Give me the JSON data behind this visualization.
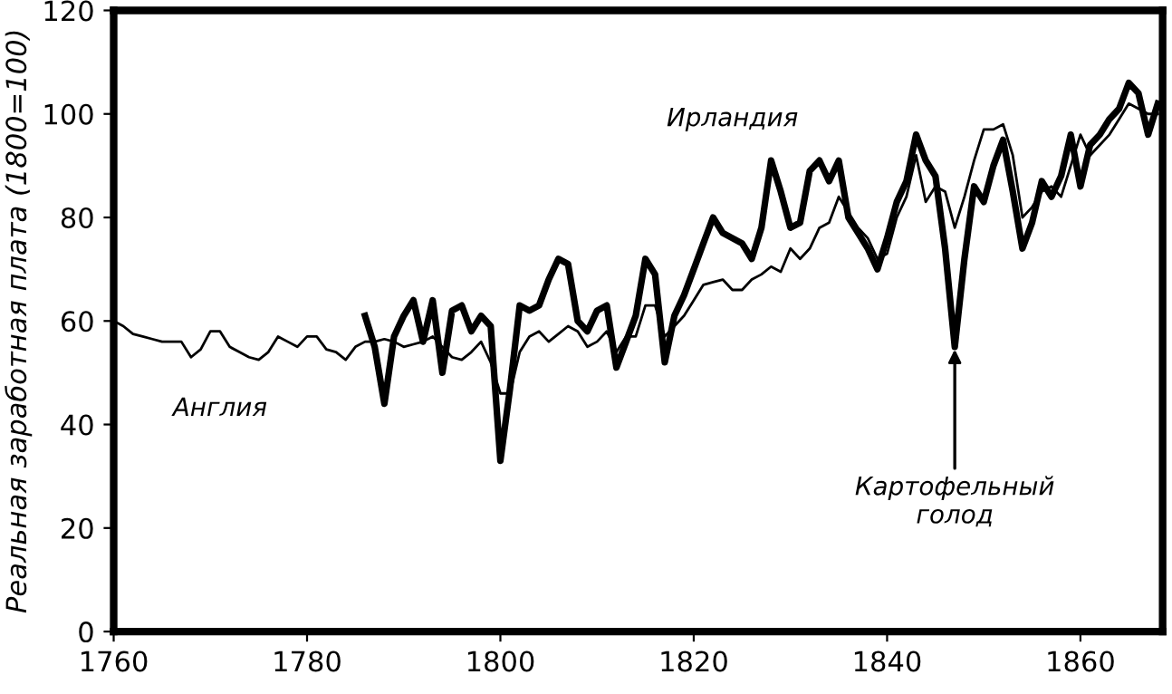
{
  "chart_data": {
    "type": "line",
    "ylabel": "Реальная заработная плата (1800=100)",
    "xlim": [
      1760,
      1868.5
    ],
    "xticks": [
      1760,
      1780,
      1800,
      1820,
      1840,
      1860
    ],
    "ylim": [
      0,
      120
    ],
    "yticks": [
      0,
      20,
      40,
      60,
      80,
      100,
      120
    ],
    "grid": false,
    "legend": false,
    "marker": "none",
    "line_style": "solid",
    "annotations": [
      {
        "text": "Картофельный\nголод",
        "x": 1847,
        "y": 55
      }
    ],
    "series": [
      {
        "name": "Англия",
        "color": "#000000",
        "x": [
          1760,
          1761,
          1762,
          1763,
          1764,
          1765,
          1766,
          1767,
          1768,
          1769,
          1770,
          1771,
          1772,
          1773,
          1774,
          1775,
          1776,
          1777,
          1778,
          1779,
          1780,
          1781,
          1782,
          1783,
          1784,
          1785,
          1786,
          1787,
          1788,
          1789,
          1790,
          1791,
          1792,
          1793,
          1794,
          1795,
          1796,
          1797,
          1798,
          1799,
          1800,
          1801,
          1802,
          1803,
          1804,
          1805,
          1806,
          1807,
          1808,
          1809,
          1810,
          1811,
          1812,
          1813,
          1814,
          1815,
          1816,
          1817,
          1818,
          1819,
          1820,
          1821,
          1822,
          1823,
          1824,
          1825,
          1826,
          1827,
          1828,
          1829,
          1830,
          1831,
          1832,
          1833,
          1834,
          1835,
          1836,
          1837,
          1838,
          1839,
          1840,
          1841,
          1842,
          1843,
          1844,
          1845,
          1846,
          1847,
          1848,
          1849,
          1850,
          1851,
          1852,
          1853,
          1854,
          1855,
          1856,
          1857,
          1858,
          1859,
          1860,
          1861,
          1862,
          1863,
          1864,
          1865,
          1866,
          1867,
          1868
        ],
        "values": [
          60,
          59,
          57.5,
          57,
          56.5,
          56,
          56,
          56,
          53,
          54.5,
          58,
          58,
          55,
          54,
          53,
          52.5,
          54,
          57,
          56,
          55,
          57,
          57,
          54.5,
          54,
          52.5,
          55,
          56,
          56,
          56.5,
          56,
          55,
          55.5,
          56,
          57,
          55,
          53,
          52.5,
          54,
          56,
          52,
          46,
          46,
          54,
          57,
          58,
          56,
          57.5,
          59,
          58,
          55,
          56,
          58,
          54,
          57,
          57,
          63,
          63,
          57,
          59,
          61,
          64,
          67,
          67.5,
          68,
          66,
          66,
          68,
          69,
          70.5,
          69.5,
          74,
          72,
          74,
          78,
          79,
          84,
          81,
          78,
          76,
          72,
          73,
          80,
          84,
          92,
          83,
          86,
          85,
          78,
          84,
          91,
          97,
          97,
          98,
          92,
          80,
          82,
          85,
          86,
          84,
          90,
          96,
          92,
          94,
          96,
          99,
          102,
          101,
          100,
          100
        ]
      },
      {
        "name": "Ирландия",
        "color": "#000000",
        "x": [
          1786,
          1787,
          1788,
          1789,
          1790,
          1791,
          1792,
          1793,
          1794,
          1795,
          1796,
          1797,
          1798,
          1799,
          1800,
          1801,
          1802,
          1803,
          1804,
          1805,
          1806,
          1807,
          1808,
          1809,
          1810,
          1811,
          1812,
          1813,
          1814,
          1815,
          1816,
          1817,
          1818,
          1819,
          1820,
          1821,
          1822,
          1823,
          1824,
          1825,
          1826,
          1827,
          1828,
          1829,
          1830,
          1831,
          1832,
          1833,
          1834,
          1835,
          1836,
          1837,
          1838,
          1839,
          1840,
          1841,
          1842,
          1843,
          1844,
          1845,
          1846,
          1847,
          1848,
          1849,
          1850,
          1851,
          1852,
          1853,
          1854,
          1855,
          1856,
          1857,
          1858,
          1859,
          1860,
          1861,
          1862,
          1863,
          1864,
          1865,
          1866,
          1867,
          1868
        ],
        "values": [
          61,
          55,
          44,
          57,
          61,
          64,
          56,
          64,
          50,
          62,
          63,
          58,
          61,
          59,
          33,
          47,
          63,
          62,
          63,
          68,
          72,
          71,
          60,
          58,
          62,
          63,
          51,
          56,
          61,
          72,
          69,
          52,
          61,
          65,
          70,
          75,
          80,
          77,
          76,
          75,
          72,
          78,
          91,
          85,
          78,
          79,
          89,
          91,
          87,
          91,
          80,
          77,
          74,
          70,
          76,
          83,
          87,
          96,
          91,
          88,
          74,
          55,
          72,
          86,
          83,
          90,
          95,
          85,
          74,
          79,
          87,
          84,
          88,
          96,
          86,
          94,
          96,
          99,
          101,
          106,
          104,
          96,
          102
        ]
      }
    ]
  }
}
